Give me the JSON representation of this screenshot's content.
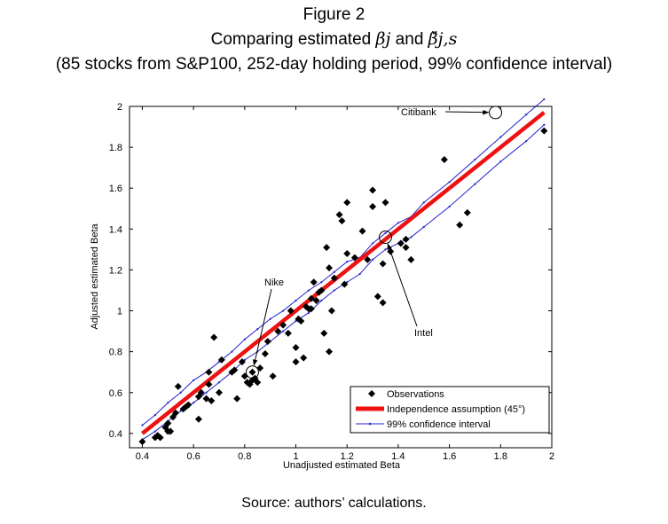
{
  "figure_label": "Figure 2",
  "title_prefix": "Comparing estimated ",
  "title_beta_j": "βj",
  "title_and": " and ",
  "title_beta_js": "β̌j,s",
  "subtitle": "(85 stocks from S&P100, 252-day holding period, 99% confidence interval)",
  "source_note": "Source: authors’ calculations.",
  "chart_data": {
    "type": "scatter",
    "xlabel": "Unadjusted estimated Beta",
    "ylabel": "Adjusted estimated Beta",
    "xlim": [
      0.35,
      2.0
    ],
    "ylim": [
      0.33,
      2.0
    ],
    "xticks": [
      0.4,
      0.6,
      0.8,
      1,
      1.2,
      1.4,
      1.6,
      1.8,
      2
    ],
    "yticks": [
      0.4,
      0.6,
      0.8,
      1,
      1.2,
      1.4,
      1.6,
      1.8,
      2
    ],
    "legend": {
      "position": "bottom-right",
      "entries": [
        "Observations",
        "Independence assumption (45°)",
        "99% confidence interval"
      ]
    },
    "series": [
      {
        "name": "Observations",
        "style": "diamond-marker",
        "color": "#000000",
        "points": [
          [
            0.4,
            0.36
          ],
          [
            0.45,
            0.38
          ],
          [
            0.46,
            0.39
          ],
          [
            0.47,
            0.38
          ],
          [
            0.49,
            0.43
          ],
          [
            0.5,
            0.41
          ],
          [
            0.5,
            0.45
          ],
          [
            0.51,
            0.41
          ],
          [
            0.52,
            0.48
          ],
          [
            0.53,
            0.5
          ],
          [
            0.54,
            0.63
          ],
          [
            0.56,
            0.52
          ],
          [
            0.57,
            0.53
          ],
          [
            0.58,
            0.54
          ],
          [
            0.62,
            0.47
          ],
          [
            0.62,
            0.58
          ],
          [
            0.63,
            0.6
          ],
          [
            0.65,
            0.57
          ],
          [
            0.66,
            0.64
          ],
          [
            0.66,
            0.7
          ],
          [
            0.67,
            0.56
          ],
          [
            0.68,
            0.87
          ],
          [
            0.7,
            0.6
          ],
          [
            0.71,
            0.76
          ],
          [
            0.75,
            0.7
          ],
          [
            0.76,
            0.71
          ],
          [
            0.77,
            0.57
          ],
          [
            0.79,
            0.75
          ],
          [
            0.8,
            0.68
          ],
          [
            0.81,
            0.65
          ],
          [
            0.82,
            0.64
          ],
          [
            0.83,
            0.7
          ],
          [
            0.83,
            0.66
          ],
          [
            0.84,
            0.67
          ],
          [
            0.85,
            0.65
          ],
          [
            0.86,
            0.72
          ],
          [
            0.88,
            0.79
          ],
          [
            0.89,
            0.85
          ],
          [
            0.91,
            0.68
          ],
          [
            0.93,
            0.9
          ],
          [
            0.95,
            0.93
          ],
          [
            0.97,
            0.89
          ],
          [
            0.98,
            1.0
          ],
          [
            1.0,
            0.75
          ],
          [
            1.0,
            0.82
          ],
          [
            1.01,
            0.96
          ],
          [
            1.02,
            0.95
          ],
          [
            1.03,
            0.77
          ],
          [
            1.04,
            1.02
          ],
          [
            1.05,
            1.01
          ],
          [
            1.06,
            1.01
          ],
          [
            1.06,
            1.06
          ],
          [
            1.07,
            1.14
          ],
          [
            1.08,
            1.05
          ],
          [
            1.09,
            1.09
          ],
          [
            1.1,
            1.1
          ],
          [
            1.11,
            0.89
          ],
          [
            1.12,
            1.31
          ],
          [
            1.13,
            0.8
          ],
          [
            1.13,
            1.21
          ],
          [
            1.14,
            1.0
          ],
          [
            1.15,
            1.16
          ],
          [
            1.17,
            1.47
          ],
          [
            1.18,
            1.44
          ],
          [
            1.19,
            1.13
          ],
          [
            1.2,
            1.28
          ],
          [
            1.2,
            1.53
          ],
          [
            1.23,
            1.26
          ],
          [
            1.26,
            1.39
          ],
          [
            1.28,
            1.25
          ],
          [
            1.3,
            1.59
          ],
          [
            1.3,
            1.51
          ],
          [
            1.32,
            1.07
          ],
          [
            1.34,
            1.23
          ],
          [
            1.34,
            1.04
          ],
          [
            1.35,
            1.53
          ],
          [
            1.37,
            1.29
          ],
          [
            1.41,
            1.33
          ],
          [
            1.43,
            1.35
          ],
          [
            1.43,
            1.31
          ],
          [
            1.45,
            1.25
          ],
          [
            1.58,
            1.74
          ],
          [
            1.64,
            1.42
          ],
          [
            1.67,
            1.48
          ],
          [
            1.97,
            1.88
          ]
        ]
      },
      {
        "name": "Independence assumption (45°)",
        "style": "thick-line",
        "color": "#ee1111",
        "x": [
          0.4,
          1.97
        ],
        "y": [
          0.4,
          1.97
        ]
      },
      {
        "name": "99% confidence interval (upper)",
        "style": "thin-line",
        "color": "#2222cc",
        "x": [
          0.4,
          0.45,
          0.5,
          0.55,
          0.6,
          0.65,
          0.7,
          0.75,
          0.8,
          0.85,
          0.9,
          0.95,
          1.0,
          1.05,
          1.1,
          1.15,
          1.2,
          1.25,
          1.3,
          1.35,
          1.4,
          1.45,
          1.5,
          1.6,
          1.7,
          1.8,
          1.9,
          1.97
        ],
        "y": [
          0.44,
          0.49,
          0.55,
          0.6,
          0.66,
          0.7,
          0.75,
          0.8,
          0.86,
          0.91,
          0.96,
          1.0,
          1.05,
          1.1,
          1.14,
          1.19,
          1.24,
          1.26,
          1.33,
          1.38,
          1.43,
          1.46,
          1.53,
          1.63,
          1.74,
          1.85,
          1.96,
          2.04
        ]
      },
      {
        "name": "99% confidence interval (lower)",
        "style": "thin-line",
        "color": "#2222cc",
        "x": [
          0.4,
          0.45,
          0.5,
          0.55,
          0.6,
          0.65,
          0.7,
          0.75,
          0.8,
          0.85,
          0.9,
          0.95,
          1.0,
          1.05,
          1.1,
          1.15,
          1.2,
          1.25,
          1.3,
          1.35,
          1.4,
          1.45,
          1.5,
          1.6,
          1.7,
          1.8,
          1.9,
          1.97
        ],
        "y": [
          0.37,
          0.41,
          0.46,
          0.51,
          0.55,
          0.6,
          0.65,
          0.7,
          0.76,
          0.8,
          0.85,
          0.9,
          0.95,
          0.99,
          1.05,
          1.1,
          1.14,
          1.18,
          1.25,
          1.3,
          1.33,
          1.36,
          1.41,
          1.51,
          1.62,
          1.73,
          1.83,
          1.91
        ]
      }
    ],
    "annotations": [
      {
        "label": "Citibank",
        "point": [
          1.78,
          1.97
        ],
        "circled": true
      },
      {
        "label": "Nike",
        "point": [
          0.83,
          0.7
        ],
        "circled": true
      },
      {
        "label": "Intel",
        "point": [
          1.35,
          1.36
        ],
        "circled": true
      }
    ]
  }
}
